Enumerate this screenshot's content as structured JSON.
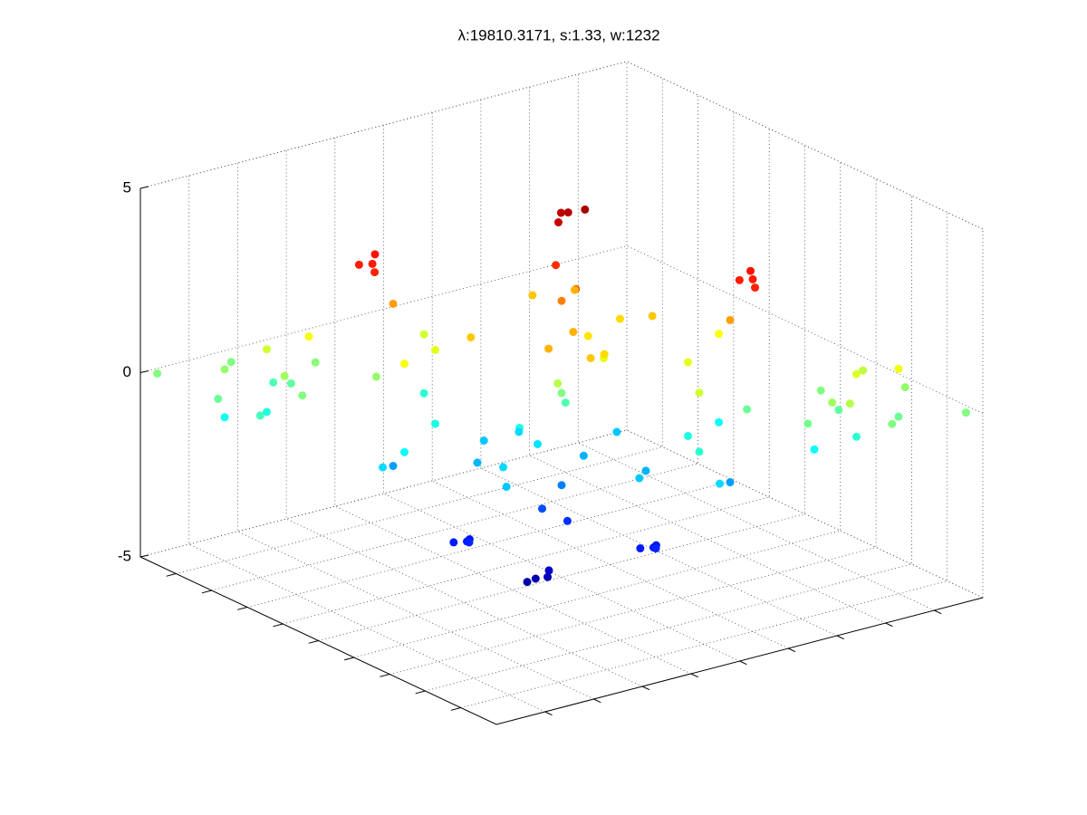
{
  "chart_data": {
    "type": "scatter3d",
    "title": "λ:19810.3171, s:1.33, w:1232",
    "colormap": "jet",
    "grid": true,
    "xlim": [
      -5,
      5
    ],
    "ylim": [
      -5,
      5
    ],
    "zlim": [
      -5,
      5
    ],
    "xticks": [
      -4,
      -3,
      -2,
      -1,
      0,
      1,
      2,
      3,
      4
    ],
    "yticks": [
      -4,
      -3,
      -2,
      -1,
      0,
      1,
      2,
      3,
      4
    ],
    "zticks": [
      -5,
      0,
      5
    ],
    "x": [
      -4.5,
      -4,
      -3.5,
      -3,
      -3.5,
      -2.5,
      -3.5,
      -4,
      -3,
      -3.5,
      -3.5,
      -4.8,
      -2.2,
      -3,
      -4,
      4.5,
      4,
      3.5,
      3,
      3.5,
      2.5,
      3.5,
      4,
      3,
      3.5,
      3.5,
      4.8,
      2.2,
      3,
      4,
      0,
      0.3,
      -0.3,
      0.5,
      -0.5,
      0.2,
      -0.4,
      0.6,
      -0.2,
      0,
      0,
      0.4,
      0,
      -0.3,
      0.3,
      -0.5,
      -0.7,
      -0.3,
      -0.5,
      0.5,
      0.7,
      0.4,
      0.6,
      -1.9,
      -2.1,
      -1.7,
      -2.0,
      2.5,
      2.3,
      2.7,
      2.4,
      -0.2,
      -0.4,
      0,
      -0.3,
      1.9,
      1.7,
      2.1,
      1.8,
      -1.5,
      1.5,
      0.5,
      -0.5,
      -1,
      1,
      0,
      1.2,
      -1.5,
      1.5,
      0.5,
      -0.5,
      -1,
      1,
      0,
      -1.2,
      -1.5,
      1.5,
      -2.5,
      2.5,
      -1,
      1,
      -2,
      2,
      -1.5,
      1.5,
      -2.5,
      2.5,
      -1,
      1,
      -2,
      2,
      -1.2,
      2.8
    ],
    "y": [
      -3.5,
      -4,
      -3,
      -3.5,
      -4.5,
      -3.5,
      -2.5,
      -3,
      -4,
      -3.5,
      -3.5,
      -4.8,
      -2.2,
      -3,
      -4,
      3.5,
      4,
      3,
      3.5,
      4.5,
      3.5,
      2.5,
      3,
      4,
      3.5,
      3.5,
      4.8,
      2.2,
      3,
      4,
      0,
      -0.3,
      0.3,
      0.5,
      -0.5,
      0.4,
      -0.2,
      -0.2,
      0.6,
      0,
      0,
      0,
      -0.4,
      0.1,
      -0.1,
      0.5,
      0.5,
      0.7,
      0.3,
      -0.9,
      -0.8,
      -1.0,
      -0.7,
      -2.5,
      -2.3,
      -2.6,
      -2.7,
      2.1,
      2.2,
      2.0,
      1.9,
      -1.8,
      -1.6,
      -1.9,
      -2.0,
      0.5,
      0.7,
      0.4,
      0.3,
      0.5,
      -0.5,
      1.5,
      -1.5,
      1,
      -1,
      1.2,
      0,
      -0.5,
      0.5,
      -1.5,
      1.5,
      -1,
      1,
      -1.2,
      0,
      -1.5,
      1.5,
      -1,
      1,
      -2.5,
      2.5,
      -2,
      2,
      -1.5,
      1.5,
      -1,
      1,
      -2.5,
      2.5,
      -2,
      2,
      -2.8,
      1.2
    ],
    "z": [
      0,
      0.2,
      -0.3,
      0.3,
      -0.2,
      0,
      0.1,
      -0.5,
      -0.6,
      0.8,
      -0.9,
      0,
      0.2,
      1.2,
      -1.1,
      0,
      -0.2,
      0.3,
      -0.3,
      0.2,
      0,
      -0.1,
      0.5,
      0.6,
      -0.8,
      0.9,
      0,
      -0.2,
      -1.2,
      1.1,
      0,
      0.5,
      -0.5,
      1.0,
      -1.0,
      1.5,
      -1.5,
      2.0,
      -2.0,
      2.5,
      -2.5,
      3.0,
      -3.0,
      3.3,
      -3.3,
      4.5,
      4.4,
      4.6,
      4.3,
      -4.5,
      -4.4,
      -4.6,
      -4.3,
      3.5,
      3.6,
      3.4,
      3.5,
      3.5,
      3.6,
      3.4,
      3.5,
      -3.5,
      -3.6,
      -3.4,
      -3.5,
      -3.5,
      -3.6,
      -3.4,
      -3.5,
      1.8,
      1.8,
      1.8,
      1.8,
      2,
      2,
      1.6,
      1.6,
      -1.8,
      -1.8,
      -1.8,
      -1.8,
      -2,
      -2,
      -1.6,
      -1.6,
      1,
      1,
      0.8,
      0.8,
      1.2,
      1.2,
      2.2,
      2.2,
      -1,
      -1,
      -0.8,
      -0.8,
      -1.2,
      -1.2,
      -2.2,
      -2.2,
      -1.6,
      -1.6
    ]
  }
}
